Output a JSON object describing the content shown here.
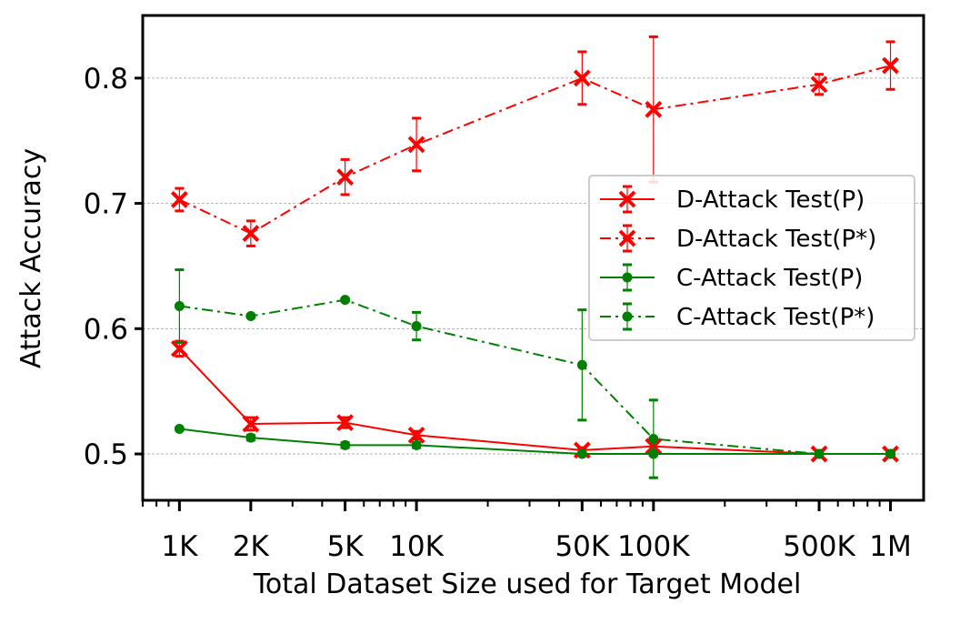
{
  "chart_data": {
    "type": "line",
    "title": "",
    "xlabel": "Total Dataset Size used for Target Model",
    "ylabel": "Attack Accuracy",
    "xscale": "log",
    "xlim": [
      700,
      1380000
    ],
    "ylim": [
      0.463,
      0.85
    ],
    "x": [
      1000,
      2000,
      5000,
      10000,
      50000,
      100000,
      500000,
      1000000
    ],
    "x_tick_labels": [
      "1K",
      "2K",
      "5K",
      "10K",
      "50K",
      "100K",
      "500K",
      "1M"
    ],
    "y_ticks": [
      0.5,
      0.6,
      0.7,
      0.8
    ],
    "y_tick_labels": [
      "0.5",
      "0.6",
      "0.7",
      "0.8"
    ],
    "grid": "horizontal",
    "legend_position": "center-right",
    "series": [
      {
        "name": "D-Attack Test(P)",
        "color": "#ff0000",
        "linestyle": "solid",
        "marker": "x",
        "values": [
          0.584,
          0.524,
          0.525,
          0.515,
          0.503,
          0.506,
          0.5,
          0.5
        ],
        "errors": [
          0.006,
          0.005,
          0.004,
          0.003,
          0.002,
          0.003,
          0.001,
          0.001
        ]
      },
      {
        "name": "D-Attack Test(P*)",
        "color": "#ff0000",
        "linestyle": "dashdot",
        "marker": "x",
        "values": [
          0.703,
          0.676,
          0.721,
          0.747,
          0.8,
          0.775,
          0.795,
          0.81
        ],
        "errors": [
          0.009,
          0.01,
          0.014,
          0.021,
          0.021,
          0.058,
          0.008,
          0.019
        ]
      },
      {
        "name": "C-Attack Test(P)",
        "color": "#008000",
        "linestyle": "solid",
        "marker": "o",
        "values": [
          0.52,
          0.513,
          0.507,
          0.507,
          0.5,
          0.5,
          0.5,
          0.5
        ],
        "errors": [
          0.001,
          0.002,
          0.002,
          0.002,
          0.001,
          0.001,
          0.001,
          0.001
        ]
      },
      {
        "name": "C-Attack Test(P*)",
        "color": "#008000",
        "linestyle": "dashdot",
        "marker": "o",
        "values": [
          0.618,
          0.61,
          0.623,
          0.602,
          0.571,
          0.512,
          0.5,
          0.5
        ],
        "errors": [
          0.029,
          0.001,
          0.001,
          0.011,
          0.044,
          0.031,
          0.001,
          0.001
        ]
      }
    ]
  }
}
